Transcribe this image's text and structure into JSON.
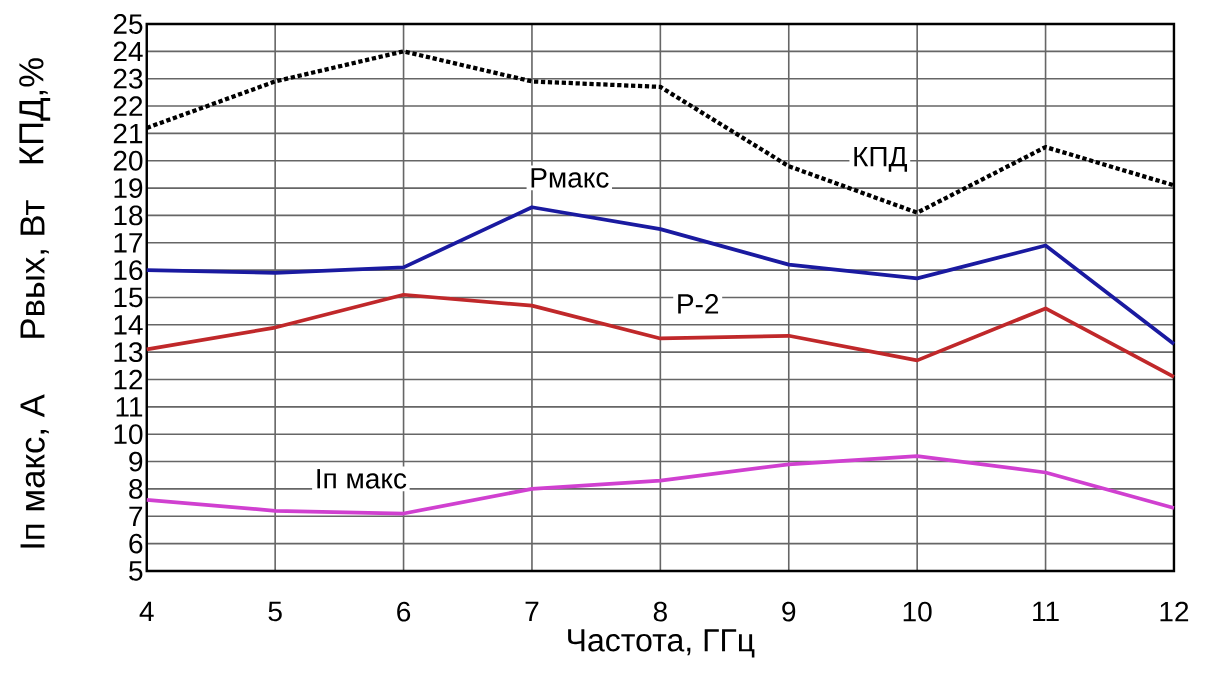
{
  "chart_data": {
    "type": "line",
    "xlabel": "Частота, ГГц",
    "ylabel": "КПД,%",
    "annotations": [
      "Рвых, Вт",
      "Iп макс, А"
    ],
    "x": [
      4,
      5,
      6,
      7,
      8,
      9,
      10,
      11,
      12
    ],
    "series": [
      {
        "name": "КПД",
        "color": "#000000",
        "line_style": "dotted",
        "values": [
          21.2,
          22.9,
          24.0,
          22.9,
          22.7,
          19.8,
          18.1,
          20.5,
          19.1
        ]
      },
      {
        "name": "Рмакс",
        "color": "#1a1aa0",
        "values": [
          16.0,
          15.9,
          16.1,
          18.3,
          17.5,
          16.2,
          15.7,
          16.9,
          13.3
        ]
      },
      {
        "name": "Р-2",
        "color": "#c0282a",
        "values": [
          13.1,
          13.9,
          15.1,
          14.7,
          13.5,
          13.6,
          12.7,
          14.6,
          12.1
        ]
      },
      {
        "name": "Iп макс",
        "color": "#d040d0",
        "values": [
          7.6,
          7.2,
          7.1,
          8.0,
          8.3,
          8.9,
          9.2,
          8.6,
          7.3
        ]
      }
    ],
    "xlim": [
      4,
      12
    ],
    "ylim": [
      5,
      25
    ],
    "xticks": [
      4,
      5,
      6,
      7,
      8,
      9,
      10,
      11,
      12
    ],
    "yticks": [
      5,
      6,
      7,
      8,
      9,
      10,
      11,
      12,
      13,
      14,
      15,
      16,
      17,
      18,
      19,
      20,
      21,
      22,
      23,
      24,
      25
    ],
    "grid": true,
    "marker": "none"
  }
}
